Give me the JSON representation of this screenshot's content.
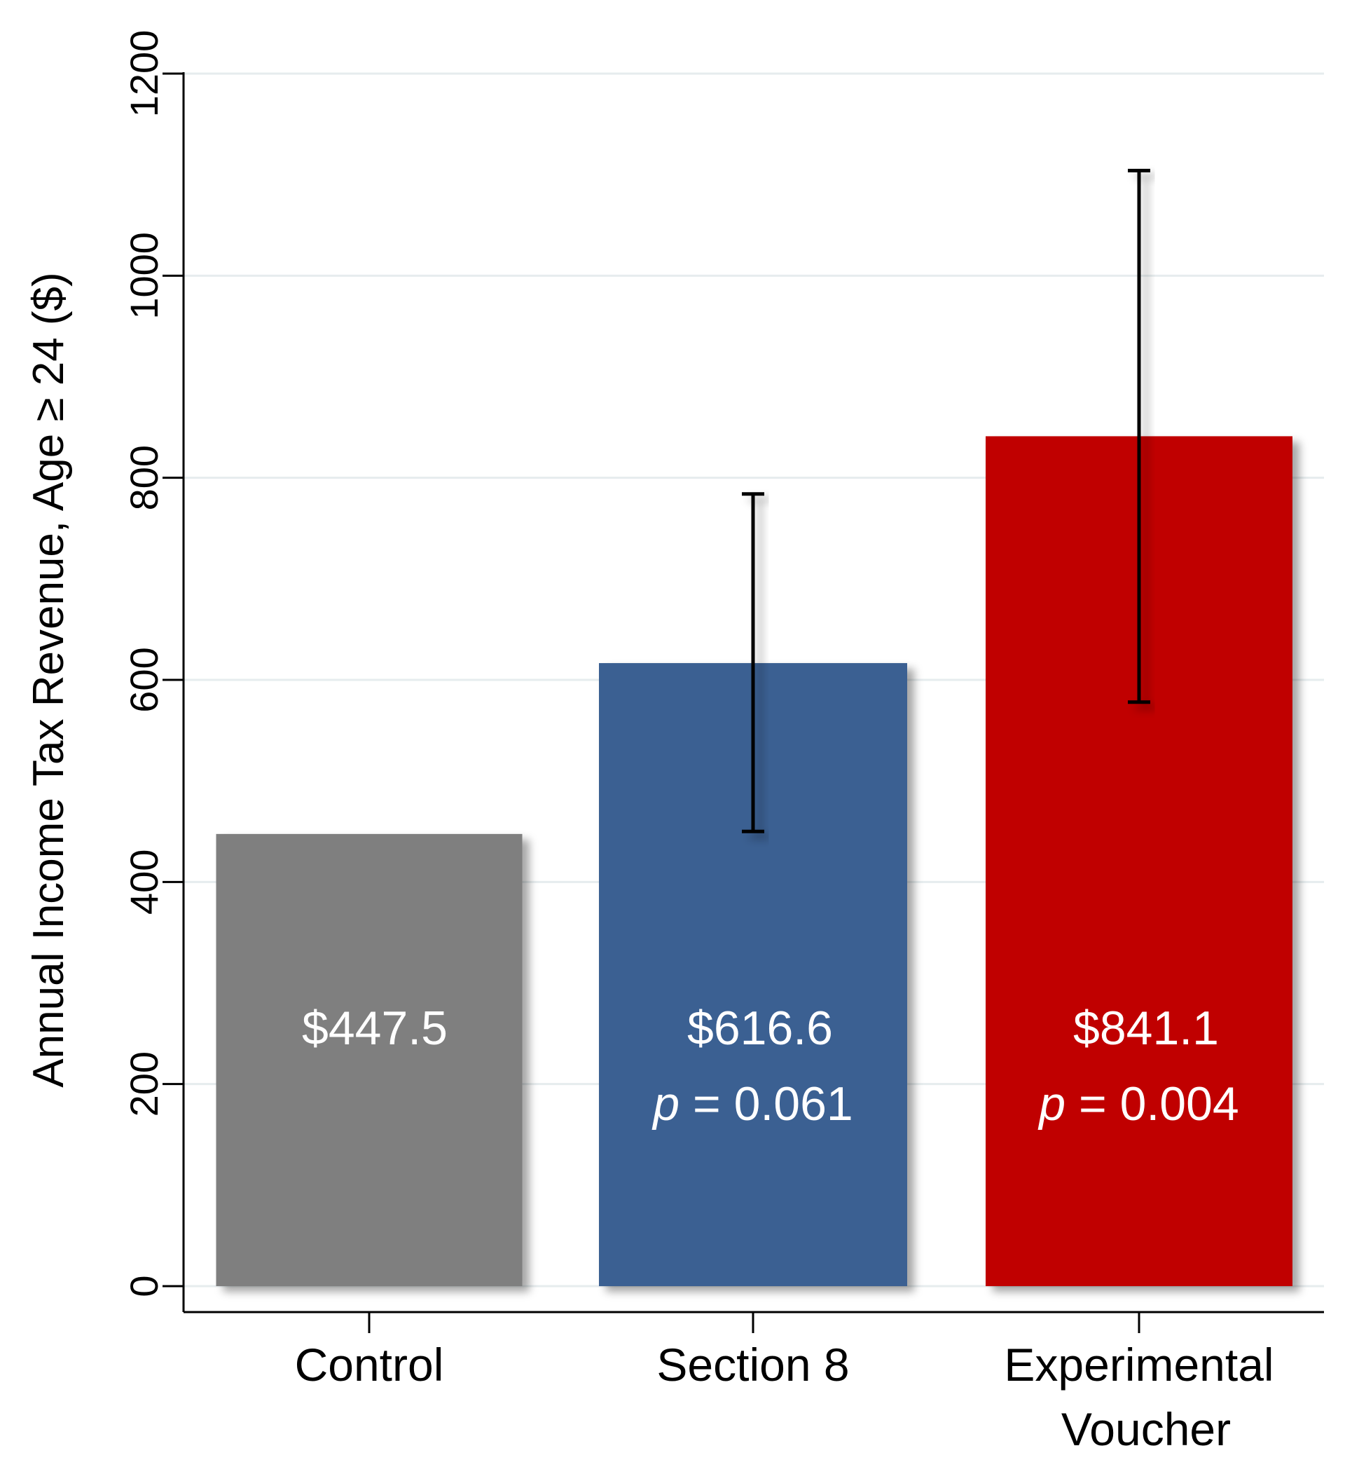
{
  "chart_data": {
    "type": "bar",
    "title": "",
    "xlabel": "",
    "ylabel": "Annual Income Tax Revenue, Age ≥ 24 ($)",
    "ylim": [
      0,
      1200
    ],
    "yticks": [
      0,
      200,
      400,
      600,
      800,
      1000,
      1200
    ],
    "grid": true,
    "categories": [
      {
        "line1": "Control",
        "line2": ""
      },
      {
        "line1": "Section 8",
        "line2": ""
      },
      {
        "line1": "Experimental",
        "line2": "Voucher"
      }
    ],
    "values": [
      447.5,
      616.6,
      841.1
    ],
    "value_labels": [
      "$447.5",
      "$616.6",
      "$841.1"
    ],
    "p_labels": [
      {
        "p": "",
        "rest": ""
      },
      {
        "p": "p",
        "rest": " = 0.061"
      },
      {
        "p": "p",
        "rest": " = 0.004"
      }
    ],
    "error_bars": [
      null,
      {
        "low": 450,
        "high": 784
      },
      {
        "low": 578,
        "high": 1104
      }
    ],
    "colors": [
      "#7f7f7f",
      "#3a6192",
      "#c00000"
    ]
  }
}
